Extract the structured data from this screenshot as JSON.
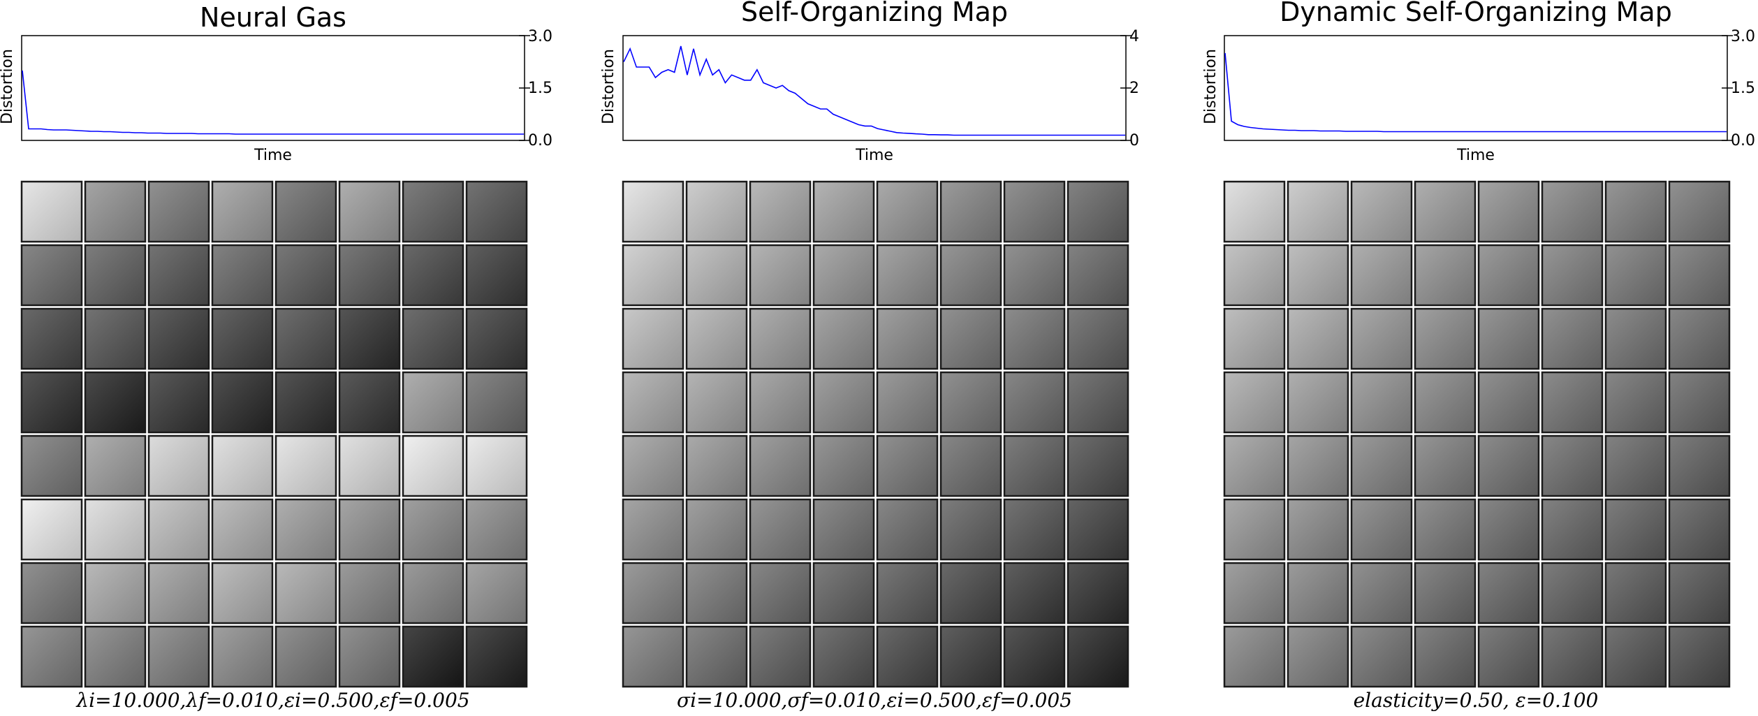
{
  "chart_data": [
    {
      "type": "line",
      "title": "Neural Gas",
      "xlabel": "Time",
      "ylabel": "Distortion",
      "ylim": [
        0.0,
        3.0
      ],
      "yticks": [
        "3.0",
        "1.5",
        "0.0"
      ],
      "y_axis_side": "right",
      "series": [
        {
          "color": "#0000ff",
          "values": [
            2.0,
            0.33,
            0.33,
            0.33,
            0.31,
            0.3,
            0.3,
            0.3,
            0.29,
            0.28,
            0.27,
            0.26,
            0.26,
            0.25,
            0.25,
            0.24,
            0.23,
            0.23,
            0.22,
            0.22,
            0.21,
            0.21,
            0.21,
            0.2,
            0.2,
            0.2,
            0.2,
            0.2,
            0.19,
            0.19,
            0.19,
            0.19,
            0.19,
            0.19,
            0.18,
            0.18,
            0.18,
            0.18,
            0.18,
            0.18,
            0.18,
            0.18,
            0.18,
            0.18,
            0.18,
            0.18,
            0.18,
            0.18,
            0.18,
            0.18,
            0.18,
            0.18,
            0.18,
            0.18,
            0.18,
            0.18,
            0.18,
            0.18,
            0.18,
            0.18,
            0.18,
            0.18,
            0.18,
            0.18,
            0.18,
            0.18,
            0.18,
            0.18,
            0.18,
            0.18,
            0.18,
            0.18,
            0.18,
            0.18,
            0.18,
            0.18,
            0.18,
            0.18,
            0.18,
            0.18,
            0.18
          ]
        }
      ],
      "filters": {
        "rows": 8,
        "cols": 8,
        "shades": [
          [
            205,
            140,
            120,
            150,
            110,
            150,
            100,
            90
          ],
          [
            110,
            100,
            90,
            105,
            95,
            95,
            80,
            70
          ],
          [
            80,
            90,
            70,
            75,
            85,
            60,
            85,
            70
          ],
          [
            60,
            50,
            65,
            55,
            60,
            65,
            150,
            110
          ],
          [
            120,
            150,
            195,
            200,
            205,
            200,
            215,
            210
          ],
          [
            215,
            200,
            175,
            165,
            150,
            140,
            135,
            135
          ],
          [
            120,
            160,
            150,
            165,
            160,
            130,
            130,
            140
          ],
          [
            125,
            125,
            125,
            135,
            120,
            120,
            45,
            50
          ]
        ]
      },
      "caption": "λi=10.000,λf=0.010,εi=0.500,εf=0.005"
    },
    {
      "type": "line",
      "title": "Self-Organizing Map",
      "xlabel": "Time",
      "ylabel": "Distortion",
      "ylim": [
        0,
        4
      ],
      "yticks": [
        "4",
        "2",
        "0"
      ],
      "y_axis_side": "right",
      "series": [
        {
          "color": "#0000ff",
          "values": [
            3.0,
            3.5,
            2.8,
            2.8,
            2.8,
            2.4,
            2.6,
            2.7,
            2.6,
            3.6,
            2.5,
            3.5,
            2.5,
            3.1,
            2.5,
            2.7,
            2.2,
            2.5,
            2.4,
            2.3,
            2.3,
            2.7,
            2.2,
            2.1,
            2.0,
            2.1,
            1.9,
            1.8,
            1.6,
            1.4,
            1.3,
            1.2,
            1.2,
            1.0,
            0.9,
            0.8,
            0.7,
            0.6,
            0.55,
            0.55,
            0.45,
            0.4,
            0.35,
            0.3,
            0.28,
            0.27,
            0.25,
            0.24,
            0.22,
            0.22,
            0.21,
            0.21,
            0.2,
            0.2,
            0.2,
            0.2,
            0.2,
            0.2,
            0.2,
            0.2,
            0.2,
            0.2,
            0.2,
            0.2,
            0.2,
            0.2,
            0.2,
            0.2,
            0.2,
            0.2,
            0.2,
            0.2,
            0.2,
            0.2,
            0.2,
            0.2,
            0.2,
            0.2,
            0.2,
            0.2
          ]
        }
      ],
      "filters": {
        "rows": 8,
        "cols": 8,
        "shades": [
          [
            205,
            180,
            160,
            155,
            145,
            130,
            120,
            105
          ],
          [
            185,
            170,
            155,
            145,
            140,
            125,
            120,
            105
          ],
          [
            175,
            165,
            150,
            140,
            135,
            120,
            115,
            100
          ],
          [
            160,
            155,
            145,
            135,
            130,
            120,
            110,
            95
          ],
          [
            150,
            145,
            135,
            125,
            120,
            110,
            100,
            85
          ],
          [
            140,
            135,
            125,
            115,
            110,
            100,
            90,
            75
          ],
          [
            130,
            120,
            110,
            100,
            95,
            80,
            70,
            60
          ],
          [
            125,
            110,
            100,
            90,
            80,
            70,
            60,
            50
          ]
        ]
      },
      "caption": "σi=10.000,σf=0.010,εi=0.500,εf=0.005"
    },
    {
      "type": "line",
      "title": "Dynamic Self-Organizing Map",
      "xlabel": "Time",
      "ylabel": "Distortion",
      "ylim": [
        0.0,
        3.0
      ],
      "yticks": [
        "3.0",
        "1.5",
        "0.0"
      ],
      "y_axis_side": "right",
      "series": [
        {
          "color": "#0000ff",
          "values": [
            2.5,
            0.55,
            0.45,
            0.4,
            0.37,
            0.35,
            0.33,
            0.32,
            0.31,
            0.3,
            0.29,
            0.29,
            0.28,
            0.28,
            0.28,
            0.27,
            0.27,
            0.27,
            0.27,
            0.26,
            0.26,
            0.26,
            0.26,
            0.26,
            0.26,
            0.25,
            0.25,
            0.25,
            0.25,
            0.25,
            0.25,
            0.25,
            0.25,
            0.25,
            0.25,
            0.25,
            0.25,
            0.25,
            0.25,
            0.25,
            0.25,
            0.25,
            0.25,
            0.25,
            0.25,
            0.25,
            0.25,
            0.25,
            0.25,
            0.25,
            0.25,
            0.25,
            0.25,
            0.25,
            0.25,
            0.25,
            0.25,
            0.25,
            0.25,
            0.25,
            0.25,
            0.25,
            0.25,
            0.25,
            0.25,
            0.25,
            0.25,
            0.25,
            0.25,
            0.25,
            0.25,
            0.25,
            0.25,
            0.25,
            0.25,
            0.25,
            0.25,
            0.25,
            0.25,
            0.25
          ]
        }
      ],
      "filters": {
        "rows": 8,
        "cols": 8,
        "shades": [
          [
            200,
            180,
            160,
            150,
            140,
            130,
            125,
            120
          ],
          [
            170,
            165,
            150,
            140,
            130,
            125,
            120,
            115
          ],
          [
            165,
            160,
            145,
            135,
            125,
            120,
            115,
            110
          ],
          [
            160,
            150,
            140,
            130,
            120,
            115,
            110,
            105
          ],
          [
            150,
            140,
            130,
            125,
            115,
            110,
            105,
            100
          ],
          [
            145,
            135,
            125,
            120,
            110,
            105,
            100,
            95
          ],
          [
            135,
            130,
            120,
            110,
            105,
            100,
            95,
            90
          ],
          [
            130,
            125,
            115,
            105,
            100,
            95,
            90,
            85
          ]
        ]
      },
      "caption": "elasticity=0.50, ε=0.100"
    }
  ]
}
